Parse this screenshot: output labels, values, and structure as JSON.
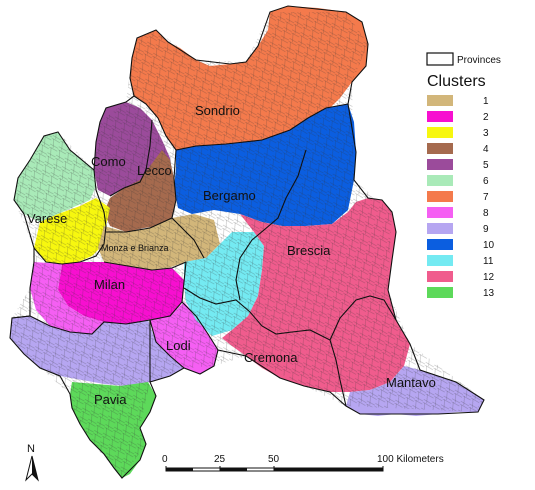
{
  "map": {
    "regions": [
      {
        "key": "sondrio",
        "name": "Sondrio",
        "cluster": "7"
      },
      {
        "key": "como",
        "name": "Como",
        "cluster": "5"
      },
      {
        "key": "lecco",
        "name": "Lecco",
        "cluster": "4"
      },
      {
        "key": "bergamo",
        "name": "Bergamo",
        "cluster": "10"
      },
      {
        "key": "varese",
        "name": "Varese",
        "cluster": "3"
      },
      {
        "key": "monza",
        "name": "Monza e Brianza",
        "cluster": "1"
      },
      {
        "key": "brescia",
        "name": "Brescia",
        "cluster": "12"
      },
      {
        "key": "milan",
        "name": "Milan",
        "cluster": "2"
      },
      {
        "key": "lodi",
        "name": "Lodi",
        "cluster": "8"
      },
      {
        "key": "cremona",
        "name": "Cremona",
        "cluster": "12"
      },
      {
        "key": "mantova",
        "name": "Mantavo",
        "cluster": "9"
      },
      {
        "key": "pavia",
        "name": "Pavia",
        "cluster": "13"
      }
    ]
  },
  "legend": {
    "provinces_label": "Provinces",
    "title": "Clusters",
    "clusters": [
      {
        "label": "1",
        "color": "#d2b67a"
      },
      {
        "label": "2",
        "color": "#f70fd0"
      },
      {
        "label": "3",
        "color": "#f7f70f"
      },
      {
        "label": "4",
        "color": "#a56a4e"
      },
      {
        "label": "5",
        "color": "#9b4b9b"
      },
      {
        "label": "6",
        "color": "#a9eab8"
      },
      {
        "label": "7",
        "color": "#f47a4c"
      },
      {
        "label": "8",
        "color": "#f55ff3"
      },
      {
        "label": "9",
        "color": "#b6a6f1"
      },
      {
        "label": "10",
        "color": "#0b5ee0"
      },
      {
        "label": "11",
        "color": "#74eaf2"
      },
      {
        "label": "12",
        "color": "#f05c8d"
      },
      {
        "label": "13",
        "color": "#5dd95a"
      }
    ]
  },
  "scale_bar": {
    "ticks": [
      "0",
      "25",
      "50",
      "100 Kilometers"
    ]
  },
  "north_arrow": {
    "label": "N"
  }
}
